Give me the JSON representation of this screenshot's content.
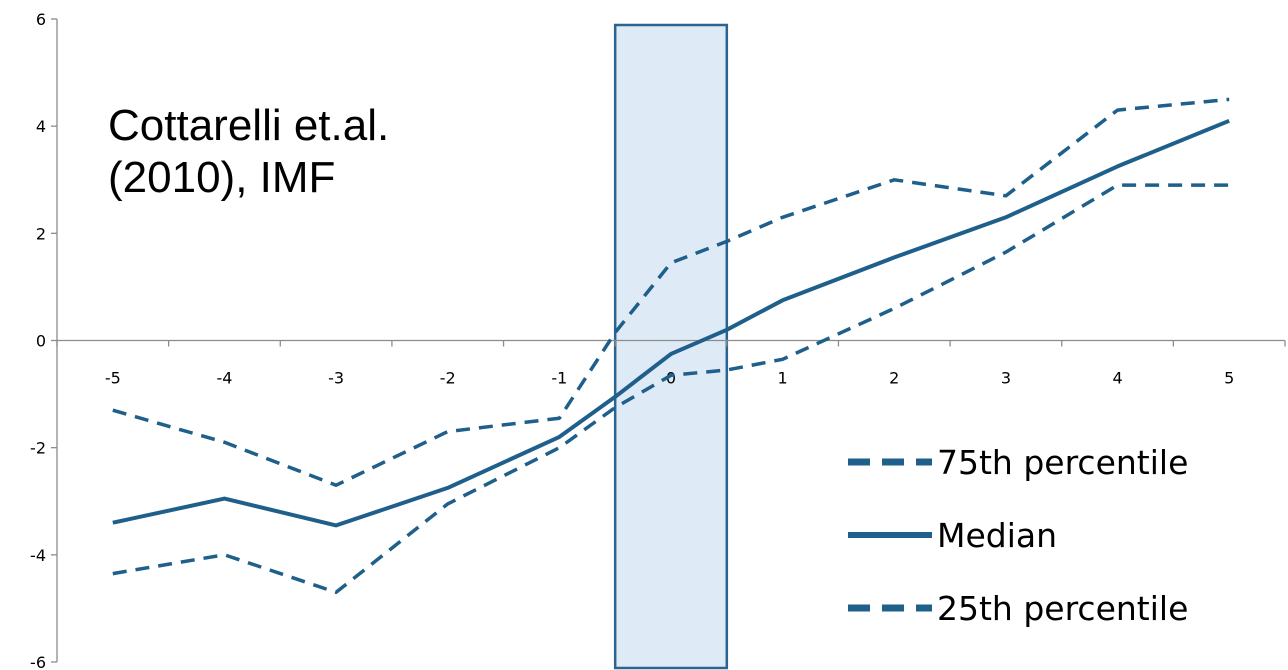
{
  "chart_data": {
    "type": "line",
    "x": [
      -5,
      -4,
      -3,
      -2,
      -1,
      0,
      1,
      2,
      3,
      4,
      5
    ],
    "x_tick_labels": [
      "-5",
      "-4",
      "-3",
      "-2",
      "-1",
      "0",
      "1",
      "2",
      "3",
      "4",
      "5"
    ],
    "y_tick_labels": [
      "6",
      "4",
      "2",
      "0",
      "-2",
      "-4",
      "-6"
    ],
    "ylim": [
      -6,
      6
    ],
    "yticks": [
      6,
      4,
      2,
      0,
      -2,
      -4,
      -6
    ],
    "grid": false,
    "annotation": "Cottarelli et.al.\n(2010), IMF",
    "annotation_lines": [
      "Cottarelli et.al.",
      "(2010), IMF"
    ],
    "highlight_band": {
      "x_from": -0.5,
      "x_to": 0.5,
      "fill": "#deeaf5",
      "stroke": "#2a6591"
    },
    "legend_position": "bottom-right",
    "series": [
      {
        "name": "75th percentile",
        "style": "dashed",
        "color": "#1f5f8b",
        "points": [
          [
            -5,
            -1.3
          ],
          [
            -4,
            -1.9
          ],
          [
            -3,
            -2.7
          ],
          [
            -2,
            -1.7
          ],
          [
            -1,
            -1.45
          ],
          [
            -0.5,
            0.15
          ],
          [
            0,
            1.45
          ],
          [
            0.5,
            1.85
          ],
          [
            1,
            2.3
          ],
          [
            2,
            3.0
          ],
          [
            3,
            2.7
          ],
          [
            4,
            4.3
          ],
          [
            5,
            4.5
          ]
        ]
      },
      {
        "name": "Median",
        "style": "solid",
        "color": "#1f5f8b",
        "points": [
          [
            -5,
            -3.4
          ],
          [
            -4,
            -2.95
          ],
          [
            -3,
            -3.45
          ],
          [
            -2,
            -2.75
          ],
          [
            -1,
            -1.8
          ],
          [
            -0.5,
            -1.05
          ],
          [
            0,
            -0.25
          ],
          [
            0.5,
            0.2
          ],
          [
            1,
            0.75
          ],
          [
            2,
            1.55
          ],
          [
            3,
            2.3
          ],
          [
            4,
            3.25
          ],
          [
            5,
            4.1
          ]
        ]
      },
      {
        "name": "25th percentile",
        "style": "dashed",
        "color": "#1f5f8b",
        "points": [
          [
            -5,
            -4.35
          ],
          [
            -4,
            -4.0
          ],
          [
            -3,
            -4.7
          ],
          [
            -2,
            -3.05
          ],
          [
            -1,
            -2.0
          ],
          [
            -0.5,
            -1.25
          ],
          [
            0,
            -0.65
          ],
          [
            0.5,
            -0.55
          ],
          [
            1,
            -0.35
          ],
          [
            2,
            0.6
          ],
          [
            3,
            1.65
          ],
          [
            4,
            2.9
          ],
          [
            5,
            2.9
          ]
        ]
      }
    ]
  }
}
